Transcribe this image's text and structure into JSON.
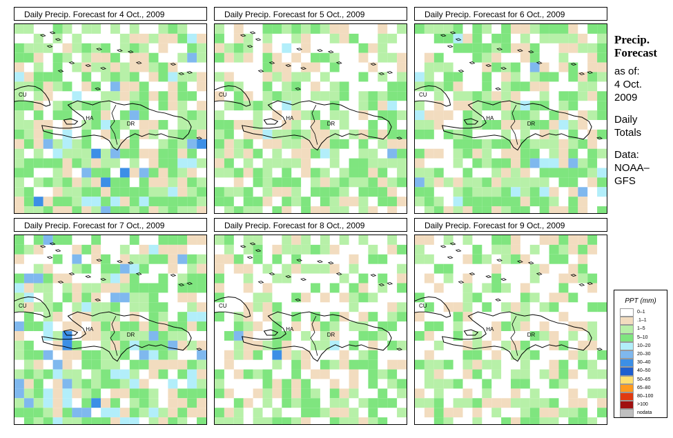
{
  "panels": [
    {
      "title": "Daily Precip. Forecast for  4 Oct., 2009",
      "seed": 11,
      "wet": 0.62,
      "heavy": 0.2
    },
    {
      "title": "Daily Precip. Forecast for  5 Oct., 2009",
      "seed": 23,
      "wet": 0.5,
      "heavy": 0.05
    },
    {
      "title": "Daily Precip. Forecast for  6 Oct., 2009",
      "seed": 37,
      "wet": 0.55,
      "heavy": 0.08
    },
    {
      "title": "Daily Precip. Forecast for  7 Oct., 2009",
      "seed": 41,
      "wet": 0.6,
      "heavy": 0.25
    },
    {
      "title": "Daily Precip. Forecast for  8 Oct., 2009",
      "seed": 53,
      "wet": 0.4,
      "heavy": 0.03
    },
    {
      "title": "Daily Precip. Forecast for  9 Oct., 2009",
      "seed": 67,
      "wet": 0.32,
      "heavy": 0.0
    }
  ],
  "map_labels": {
    "cuba": "CU",
    "haiti": "HA",
    "dr": "DR"
  },
  "side": {
    "heading1": "Precip.",
    "heading2": "Forecast",
    "asof": "as of:",
    "date1": "4 Oct.",
    "date2": "2009",
    "daily1": "Daily",
    "daily2": "Totals",
    "data1": "Data:",
    "data2": "NOAA–",
    "data3": "GFS"
  },
  "legend": {
    "title": "PPT (mm)",
    "items": [
      {
        "label": "0–1",
        "color": "#ffffff"
      },
      {
        "label": ".1–1",
        "color": "#f2dcbf"
      },
      {
        "label": "1–5",
        "color": "#b7f0a8"
      },
      {
        "label": "5–10",
        "color": "#7fe57f"
      },
      {
        "label": "10–20",
        "color": "#b2eefa"
      },
      {
        "label": "20–30",
        "color": "#7fb8ee"
      },
      {
        "label": "30–40",
        "color": "#3c8fe6"
      },
      {
        "label": "40–50",
        "color": "#1f5fcf"
      },
      {
        "label": "50–65",
        "color": "#ffe070"
      },
      {
        "label": "65–80",
        "color": "#ff9a1f"
      },
      {
        "label": "80–100",
        "color": "#e03a10"
      },
      {
        "label": ">100",
        "color": "#a01010"
      },
      {
        "label": "nodata",
        "color": "#bfbfbf"
      }
    ]
  }
}
